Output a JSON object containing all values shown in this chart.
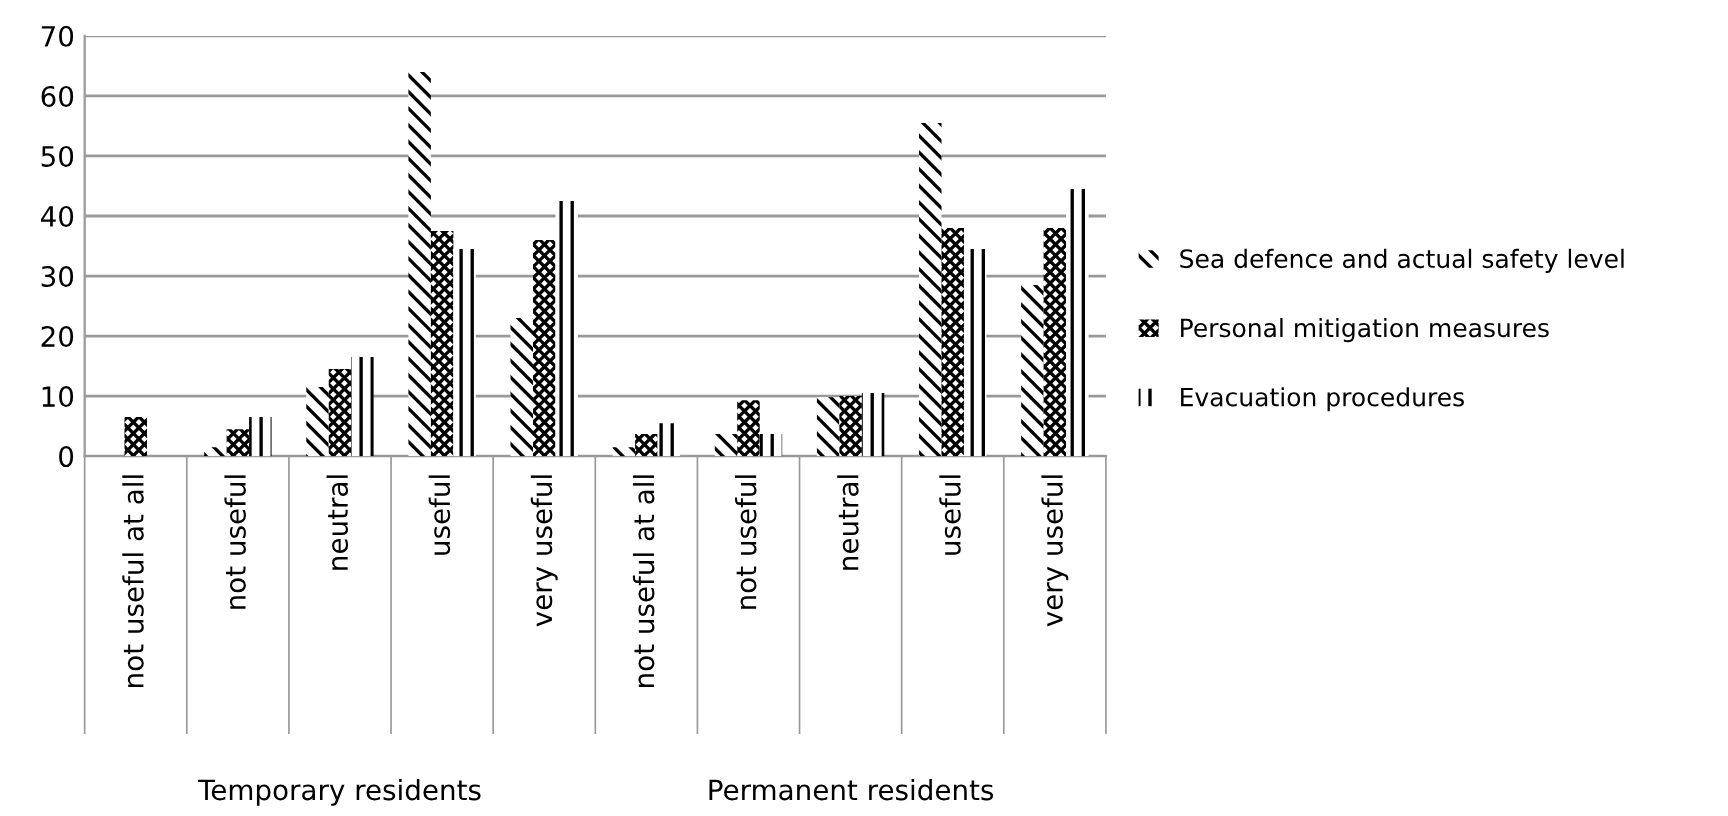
{
  "chart_data": {
    "type": "bar",
    "categories": [
      "not useful at all",
      "not useful",
      "neutral",
      "useful",
      "very useful",
      "not useful at all",
      "not useful",
      "neutral",
      "useful",
      "very useful"
    ],
    "series": [
      {
        "name": "Sea defence and actual safety level",
        "color": "#000000",
        "values": [
          0,
          1.5,
          11.5,
          64,
          23,
          1.5,
          3.7,
          9.8,
          55.5,
          28.5
        ]
      },
      {
        "name": "Personal mitigation measures",
        "color": "#000000",
        "values": [
          6.5,
          4.5,
          14.5,
          37.5,
          36,
          3.7,
          9.3,
          10,
          38,
          38
        ]
      },
      {
        "name": "Evacuation procedures",
        "color": "#000000",
        "values": [
          0,
          6.5,
          16.5,
          34.5,
          42.5,
          5.5,
          3.7,
          10.5,
          34.5,
          44.5
        ]
      }
    ],
    "annotations": [
      "Temporary residents",
      "Permanent residents"
    ],
    "ylim": [
      0,
      70
    ],
    "yticks": [
      0,
      10,
      20,
      30,
      40,
      50,
      60,
      70
    ],
    "grid": "y",
    "legend": "right"
  }
}
